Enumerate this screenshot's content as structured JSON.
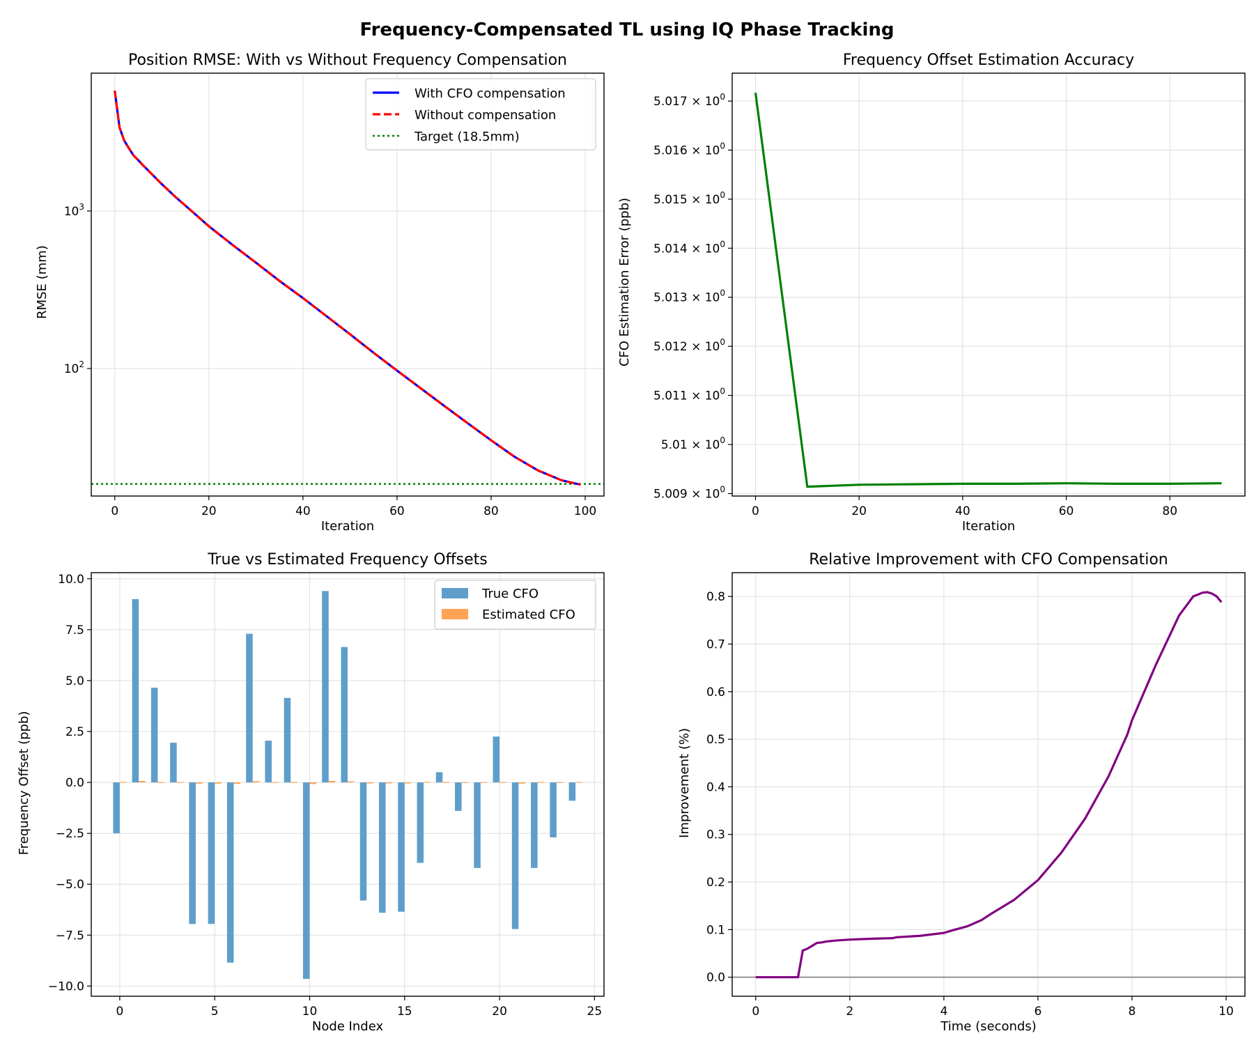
{
  "figure": {
    "title": "Frequency-Compensated TL using IQ Phase Tracking"
  },
  "colors": {
    "with_cfo": "#0000ff",
    "without_comp": "#ff0000",
    "target": "#008000",
    "cfo_error": "#008000",
    "true_cfo": "#5f9ecb",
    "est_cfo": "#ffa354",
    "improvement": "#800080",
    "zero_line": "#999999",
    "grid": "#e0e0e0"
  },
  "chart_data": [
    {
      "type": "line",
      "title": "Position RMSE: With vs Without Frequency Compensation",
      "xlabel": "Iteration",
      "ylabel": "RMSE (mm)",
      "yscale": "log",
      "xlim": [
        -5,
        104
      ],
      "ylim": [
        15.5,
        7500
      ],
      "xticks": [
        0,
        20,
        40,
        60,
        80,
        100
      ],
      "yticks": [
        {
          "value": 100,
          "base": "10",
          "exp": "2"
        },
        {
          "value": 1000,
          "base": "10",
          "exp": "3"
        }
      ],
      "grid": true,
      "legend_position": "top-right",
      "x": [
        0,
        1,
        2,
        3,
        4,
        5,
        6,
        8,
        10,
        13,
        16,
        20,
        25,
        30,
        35,
        40,
        45,
        50,
        55,
        60,
        65,
        70,
        75,
        80,
        85,
        90,
        95,
        99
      ],
      "series": [
        {
          "name": "With CFO compensation",
          "style": "solid",
          "values": [
            5800,
            3400,
            2800,
            2500,
            2250,
            2100,
            1950,
            1700,
            1480,
            1220,
            1020,
            800,
            610,
            470,
            360,
            280,
            215,
            165,
            126,
            97,
            75,
            58,
            45,
            35,
            27.5,
            22.5,
            19.5,
            18.3
          ]
        },
        {
          "name": "Without compensation",
          "style": "dashed",
          "values": [
            5800,
            3400,
            2800,
            2500,
            2250,
            2100,
            1950,
            1700,
            1480,
            1220,
            1020,
            800,
            610,
            470,
            360,
            280,
            215,
            165,
            126,
            97,
            75,
            58,
            45,
            35,
            27.5,
            22.5,
            19.5,
            18.3
          ]
        }
      ],
      "reference": {
        "name": "Target (18.5mm)",
        "style": "dotted",
        "y": 18.5
      }
    },
    {
      "type": "line",
      "title": "Frequency Offset Estimation Accuracy",
      "xlabel": "Iteration",
      "ylabel": "CFO Estimation Error (ppb)",
      "yscale": "log",
      "xlim": [
        -4.5,
        94.5
      ],
      "ylim": [
        5.00895,
        5.01757
      ],
      "xticks": [
        0,
        20,
        40,
        60,
        80
      ],
      "yticks": [
        {
          "value": 5.009,
          "base": "5.009 × 10",
          "exp": "0"
        },
        {
          "value": 5.01,
          "base": "5.01 × 10",
          "exp": "0"
        },
        {
          "value": 5.011,
          "base": "5.011 × 10",
          "exp": "0"
        },
        {
          "value": 5.012,
          "base": "5.012 × 10",
          "exp": "0"
        },
        {
          "value": 5.013,
          "base": "5.013 × 10",
          "exp": "0"
        },
        {
          "value": 5.014,
          "base": "5.014 × 10",
          "exp": "0"
        },
        {
          "value": 5.015,
          "base": "5.015 × 10",
          "exp": "0"
        },
        {
          "value": 5.016,
          "base": "5.016 × 10",
          "exp": "0"
        },
        {
          "value": 5.017,
          "base": "5.017 × 10",
          "exp": "0"
        }
      ],
      "grid": true,
      "x": [
        0,
        10,
        20,
        30,
        40,
        50,
        60,
        70,
        80,
        90
      ],
      "values": [
        5.01717,
        5.00914,
        5.00918,
        5.00919,
        5.0092,
        5.0092,
        5.00921,
        5.0092,
        5.0092,
        5.00921
      ]
    },
    {
      "type": "bar",
      "title": "True vs Estimated Frequency Offsets",
      "xlabel": "Node Index",
      "ylabel": "Frequency Offset (ppb)",
      "xlim": [
        -1.5,
        25.5
      ],
      "ylim": [
        -10.5,
        10.3
      ],
      "xticks": [
        0,
        5,
        10,
        15,
        20,
        25
      ],
      "yticks": [
        {
          "value": -10,
          "label": "−10.0"
        },
        {
          "value": -7.5,
          "label": "−7.5"
        },
        {
          "value": -5,
          "label": "−5.0"
        },
        {
          "value": -2.5,
          "label": "−2.5"
        },
        {
          "value": 0,
          "label": "0.0"
        },
        {
          "value": 2.5,
          "label": "2.5"
        },
        {
          "value": 5,
          "label": "5.0"
        },
        {
          "value": 7.5,
          "label": "7.5"
        },
        {
          "value": 10,
          "label": "10.0"
        }
      ],
      "grid": true,
      "legend_position": "top-right",
      "categories": [
        0,
        1,
        2,
        3,
        4,
        5,
        6,
        7,
        8,
        9,
        10,
        11,
        12,
        13,
        14,
        15,
        16,
        17,
        18,
        19,
        20,
        21,
        22,
        23,
        24
      ],
      "series": [
        {
          "name": "True CFO",
          "values": [
            -2.5,
            9.0,
            4.65,
            1.95,
            -6.95,
            -6.95,
            -8.85,
            7.3,
            2.05,
            4.15,
            -9.65,
            9.4,
            6.65,
            -5.8,
            -6.4,
            -6.35,
            -3.95,
            0.5,
            -1.4,
            -4.2,
            2.25,
            -7.2,
            -4.2,
            -2.7,
            -0.9
          ]
        },
        {
          "name": "Estimated CFO",
          "values": [
            -0.02,
            0.07,
            0.04,
            0.02,
            -0.06,
            -0.06,
            -0.07,
            0.06,
            0.02,
            0.03,
            -0.08,
            0.07,
            0.05,
            -0.05,
            -0.05,
            -0.05,
            -0.03,
            0.0,
            -0.01,
            -0.03,
            0.02,
            -0.06,
            -0.03,
            -0.02,
            -0.01
          ]
        }
      ]
    },
    {
      "type": "line",
      "title": "Relative Improvement with CFO Compensation",
      "xlabel": "Time (seconds)",
      "ylabel": "Improvement (%)",
      "xlim": [
        -0.5,
        10.4
      ],
      "ylim": [
        -0.04,
        0.85
      ],
      "xticks": [
        0,
        2,
        4,
        6,
        8,
        10
      ],
      "yticks": [
        {
          "value": 0.0,
          "label": "0.0"
        },
        {
          "value": 0.1,
          "label": "0.1"
        },
        {
          "value": 0.2,
          "label": "0.2"
        },
        {
          "value": 0.3,
          "label": "0.3"
        },
        {
          "value": 0.4,
          "label": "0.4"
        },
        {
          "value": 0.5,
          "label": "0.5"
        },
        {
          "value": 0.6,
          "label": "0.6"
        },
        {
          "value": 0.7,
          "label": "0.7"
        },
        {
          "value": 0.8,
          "label": "0.8"
        }
      ],
      "grid": true,
      "reference_y": 0,
      "x": [
        0,
        0.9,
        1.0,
        1.1,
        1.2,
        1.3,
        1.4,
        1.5,
        1.7,
        2.0,
        2.5,
        2.9,
        3.0,
        3.5,
        4.0,
        4.2,
        4.5,
        4.8,
        5.0,
        5.5,
        6.0,
        6.5,
        7.0,
        7.5,
        7.9,
        8.0,
        8.5,
        9.0,
        9.3,
        9.5,
        9.6,
        9.7,
        9.8,
        9.9
      ],
      "values": [
        0.0,
        0.0,
        0.056,
        0.06,
        0.066,
        0.072,
        0.073,
        0.075,
        0.077,
        0.079,
        0.081,
        0.082,
        0.084,
        0.087,
        0.093,
        0.099,
        0.107,
        0.12,
        0.133,
        0.163,
        0.204,
        0.262,
        0.333,
        0.422,
        0.51,
        0.54,
        0.655,
        0.76,
        0.8,
        0.808,
        0.809,
        0.806,
        0.8,
        0.788
      ]
    }
  ]
}
